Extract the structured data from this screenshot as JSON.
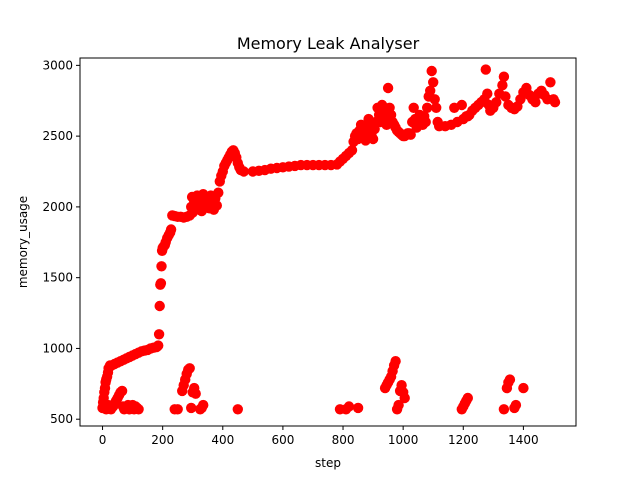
{
  "chart_data": {
    "type": "scatter",
    "title": "Memory Leak Analyser",
    "xlabel": "step",
    "ylabel": "memory_usage",
    "xlim": [
      -75,
      1575
    ],
    "ylim": [
      452,
      3052
    ],
    "xticks": [
      0,
      200,
      400,
      600,
      800,
      1000,
      1200,
      1400
    ],
    "yticks": [
      500,
      1000,
      1500,
      2000,
      2500,
      3000
    ],
    "grid": false,
    "legend": "none",
    "marker_color": "#ff0000",
    "series": [
      {
        "name": "",
        "points": [
          [
            0,
            580
          ],
          [
            2,
            620
          ],
          [
            4,
            650
          ],
          [
            6,
            690
          ],
          [
            8,
            720
          ],
          [
            10,
            760
          ],
          [
            12,
            780
          ],
          [
            15,
            800
          ],
          [
            18,
            830
          ],
          [
            20,
            860
          ],
          [
            25,
            880
          ],
          [
            30,
            880
          ],
          [
            40,
            890
          ],
          [
            50,
            900
          ],
          [
            60,
            910
          ],
          [
            70,
            920
          ],
          [
            80,
            930
          ],
          [
            90,
            940
          ],
          [
            100,
            950
          ],
          [
            110,
            960
          ],
          [
            120,
            970
          ],
          [
            130,
            980
          ],
          [
            140,
            985
          ],
          [
            150,
            990
          ],
          [
            160,
            1000
          ],
          [
            170,
            1005
          ],
          [
            180,
            1010
          ],
          [
            185,
            1020
          ],
          [
            3,
            600
          ],
          [
            8,
            580
          ],
          [
            12,
            570
          ],
          [
            18,
            600
          ],
          [
            22,
            580
          ],
          [
            28,
            570
          ],
          [
            35,
            590
          ],
          [
            40,
            610
          ],
          [
            45,
            630
          ],
          [
            50,
            650
          ],
          [
            55,
            670
          ],
          [
            60,
            690
          ],
          [
            65,
            700
          ],
          [
            68,
            590
          ],
          [
            72,
            570
          ],
          [
            78,
            580
          ],
          [
            85,
            600
          ],
          [
            90,
            570
          ],
          [
            95,
            580
          ],
          [
            100,
            600
          ],
          [
            105,
            570
          ],
          [
            110,
            590
          ],
          [
            115,
            580
          ],
          [
            120,
            570
          ],
          [
            188,
            1100
          ],
          [
            190,
            1300
          ],
          [
            192,
            1450
          ],
          [
            194,
            1460
          ],
          [
            196,
            1580
          ],
          [
            198,
            1690
          ],
          [
            200,
            1710
          ],
          [
            203,
            1720
          ],
          [
            207,
            1730
          ],
          [
            210,
            1750
          ],
          [
            215,
            1780
          ],
          [
            220,
            1800
          ],
          [
            225,
            1820
          ],
          [
            228,
            1840
          ],
          [
            232,
            1940
          ],
          [
            240,
            1935
          ],
          [
            250,
            1930
          ],
          [
            260,
            1930
          ],
          [
            270,
            1925
          ],
          [
            280,
            1930
          ],
          [
            290,
            1940
          ],
          [
            295,
            2000
          ],
          [
            298,
            2070
          ],
          [
            300,
            1960
          ],
          [
            305,
            2040
          ],
          [
            310,
            1980
          ],
          [
            315,
            2080
          ],
          [
            320,
            2000
          ],
          [
            325,
            2050
          ],
          [
            330,
            1970
          ],
          [
            335,
            2090
          ],
          [
            340,
            2020
          ],
          [
            345,
            2000
          ],
          [
            350,
            2060
          ],
          [
            355,
            1990
          ],
          [
            360,
            2080
          ],
          [
            365,
            2030
          ],
          [
            370,
            1980
          ],
          [
            375,
            2060
          ],
          [
            380,
            2010
          ],
          [
            385,
            2100
          ],
          [
            390,
            2180
          ],
          [
            395,
            2220
          ],
          [
            400,
            2250
          ],
          [
            405,
            2290
          ],
          [
            410,
            2310
          ],
          [
            415,
            2330
          ],
          [
            420,
            2350
          ],
          [
            425,
            2370
          ],
          [
            430,
            2390
          ],
          [
            435,
            2400
          ],
          [
            440,
            2380
          ],
          [
            445,
            2350
          ],
          [
            450,
            2310
          ],
          [
            455,
            2280
          ],
          [
            460,
            2260
          ],
          [
            240,
            570
          ],
          [
            250,
            570
          ],
          [
            265,
            700
          ],
          [
            270,
            740
          ],
          [
            275,
            780
          ],
          [
            280,
            820
          ],
          [
            285,
            850
          ],
          [
            290,
            860
          ],
          [
            295,
            580
          ],
          [
            300,
            690
          ],
          [
            305,
            720
          ],
          [
            310,
            680
          ],
          [
            325,
            570
          ],
          [
            330,
            580
          ],
          [
            335,
            600
          ],
          [
            450,
            570
          ],
          [
            470,
            2250
          ],
          [
            500,
            2250
          ],
          [
            520,
            2255
          ],
          [
            540,
            2260
          ],
          [
            560,
            2270
          ],
          [
            580,
            2275
          ],
          [
            600,
            2280
          ],
          [
            620,
            2285
          ],
          [
            640,
            2290
          ],
          [
            660,
            2295
          ],
          [
            680,
            2295
          ],
          [
            700,
            2295
          ],
          [
            720,
            2295
          ],
          [
            740,
            2295
          ],
          [
            760,
            2295
          ],
          [
            780,
            2300
          ],
          [
            790,
            2320
          ],
          [
            800,
            2340
          ],
          [
            810,
            2360
          ],
          [
            820,
            2380
          ],
          [
            830,
            2400
          ],
          [
            810,
            570
          ],
          [
            820,
            590
          ],
          [
            850,
            580
          ],
          [
            790,
            570
          ],
          [
            835,
            2460
          ],
          [
            840,
            2500
          ],
          [
            845,
            2520
          ],
          [
            850,
            2480
          ],
          [
            855,
            2540
          ],
          [
            860,
            2580
          ],
          [
            865,
            2560
          ],
          [
            870,
            2500
          ],
          [
            875,
            2470
          ],
          [
            880,
            2550
          ],
          [
            885,
            2620
          ],
          [
            890,
            2580
          ],
          [
            895,
            2500
          ],
          [
            900,
            2480
          ],
          [
            905,
            2550
          ],
          [
            910,
            2600
          ],
          [
            915,
            2700
          ],
          [
            920,
            2650
          ],
          [
            925,
            2600
          ],
          [
            930,
            2720
          ],
          [
            935,
            2680
          ],
          [
            940,
            2620
          ],
          [
            945,
            2580
          ],
          [
            950,
            2840
          ],
          [
            955,
            2700
          ],
          [
            960,
            2650
          ],
          [
            965,
            2600
          ],
          [
            970,
            2580
          ],
          [
            975,
            2560
          ],
          [
            980,
            2540
          ],
          [
            985,
            2530
          ],
          [
            990,
            2520
          ],
          [
            995,
            2510
          ],
          [
            1000,
            2500
          ],
          [
            1005,
            2500
          ],
          [
            1010,
            2510
          ],
          [
            1015,
            2520
          ],
          [
            1020,
            2520
          ],
          [
            1025,
            2510
          ],
          [
            1030,
            2600
          ],
          [
            1035,
            2700
          ],
          [
            1040,
            2620
          ],
          [
            1045,
            2560
          ],
          [
            1050,
            2600
          ],
          [
            1055,
            2650
          ],
          [
            1060,
            2620
          ],
          [
            1065,
            2580
          ],
          [
            1070,
            2640
          ],
          [
            1075,
            2600
          ],
          [
            1080,
            2700
          ],
          [
            1085,
            2780
          ],
          [
            1090,
            2820
          ],
          [
            1095,
            2960
          ],
          [
            1100,
            2880
          ],
          [
            1105,
            2760
          ],
          [
            1110,
            2700
          ],
          [
            1115,
            2600
          ],
          [
            940,
            720
          ],
          [
            945,
            740
          ],
          [
            950,
            760
          ],
          [
            955,
            780
          ],
          [
            960,
            800
          ],
          [
            965,
            840
          ],
          [
            970,
            880
          ],
          [
            975,
            910
          ],
          [
            980,
            570
          ],
          [
            985,
            600
          ],
          [
            990,
            700
          ],
          [
            995,
            740
          ],
          [
            1000,
            690
          ],
          [
            1005,
            650
          ],
          [
            1120,
            2570
          ],
          [
            1140,
            2570
          ],
          [
            1160,
            2580
          ],
          [
            1180,
            2600
          ],
          [
            1200,
            2620
          ],
          [
            1210,
            2640
          ],
          [
            1220,
            2650
          ],
          [
            1230,
            2680
          ],
          [
            1240,
            2700
          ],
          [
            1250,
            2720
          ],
          [
            1260,
            2740
          ],
          [
            1270,
            2760
          ],
          [
            1275,
            2970
          ],
          [
            1280,
            2800
          ],
          [
            1285,
            2720
          ],
          [
            1290,
            2680
          ],
          [
            1300,
            2700
          ],
          [
            1310,
            2740
          ],
          [
            1320,
            2800
          ],
          [
            1330,
            2860
          ],
          [
            1335,
            2920
          ],
          [
            1340,
            2780
          ],
          [
            1350,
            2720
          ],
          [
            1360,
            2700
          ],
          [
            1370,
            2690
          ],
          [
            1380,
            2710
          ],
          [
            1390,
            2760
          ],
          [
            1400,
            2810
          ],
          [
            1410,
            2840
          ],
          [
            1420,
            2790
          ],
          [
            1430,
            2760
          ],
          [
            1440,
            2740
          ],
          [
            1450,
            2800
          ],
          [
            1460,
            2820
          ],
          [
            1470,
            2790
          ],
          [
            1480,
            2760
          ],
          [
            1490,
            2880
          ],
          [
            1500,
            2760
          ],
          [
            1505,
            2740
          ],
          [
            1170,
            2700
          ],
          [
            1195,
            2720
          ],
          [
            1215,
            2640
          ],
          [
            1195,
            570
          ],
          [
            1200,
            590
          ],
          [
            1205,
            610
          ],
          [
            1210,
            630
          ],
          [
            1215,
            650
          ],
          [
            1335,
            570
          ],
          [
            1345,
            720
          ],
          [
            1350,
            760
          ],
          [
            1355,
            780
          ],
          [
            1370,
            580
          ],
          [
            1375,
            600
          ],
          [
            1400,
            720
          ]
        ]
      }
    ]
  }
}
